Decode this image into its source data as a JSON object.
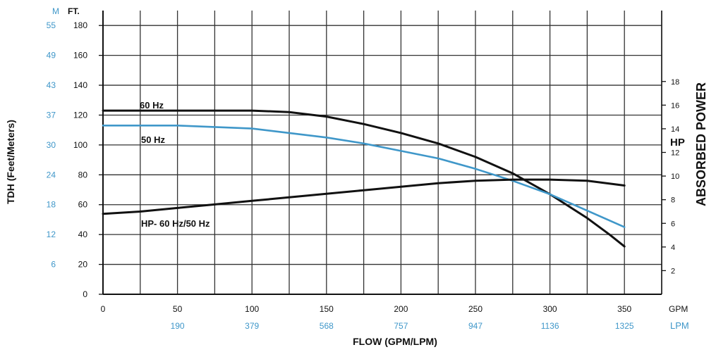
{
  "chart_data": {
    "type": "line",
    "title": "",
    "xlabel": "FLOW (GPM/LPM)",
    "ylabel": "TDH (Feet/Meters)",
    "y2label": "ABSORBED POWER",
    "units": {
      "left_meters": "M",
      "left_feet": "FT.",
      "right": "HP",
      "gpm": "GPM",
      "lpm": "LPM"
    },
    "xlim": [
      0,
      375
    ],
    "ylim": [
      0,
      190
    ],
    "y2lim": [
      0,
      24
    ],
    "grid": true,
    "x_ticks_gpm": [
      "0",
      "50",
      "100",
      "150",
      "200",
      "250",
      "300",
      "350"
    ],
    "x_ticks_gpm_values": [
      0,
      50,
      100,
      150,
      200,
      250,
      300,
      350
    ],
    "x_ticks_lpm": [
      "190",
      "379",
      "568",
      "757",
      "947",
      "1136",
      "1325"
    ],
    "x_ticks_lpm_values": [
      50,
      100,
      150,
      200,
      250,
      300,
      350
    ],
    "y_ticks_feet": [
      "0",
      "20",
      "40",
      "60",
      "80",
      "100",
      "120",
      "140",
      "160",
      "180"
    ],
    "y_ticks_feet_values": [
      0,
      20,
      40,
      60,
      80,
      100,
      120,
      140,
      160,
      180
    ],
    "y_ticks_meters": [
      "6",
      "12",
      "18",
      "24",
      "30",
      "37",
      "43",
      "49",
      "55"
    ],
    "y_ticks_meters_values": [
      20,
      40,
      60,
      80,
      100,
      120,
      140,
      160,
      180
    ],
    "y2_ticks": [
      "2",
      "4",
      "6",
      "8",
      "10",
      "12",
      "14",
      "16",
      "18"
    ],
    "y2_ticks_values": [
      2,
      4,
      6,
      8,
      10,
      12,
      14,
      16,
      18
    ],
    "series": [
      {
        "name": "60 Hz",
        "color": "#111111",
        "axis": "left",
        "x": [
          0,
          25,
          50,
          75,
          100,
          125,
          150,
          175,
          200,
          225,
          250,
          275,
          300,
          325,
          340,
          350
        ],
        "y": [
          123,
          123,
          123,
          123,
          123,
          122,
          119,
          114,
          108,
          101,
          92,
          81,
          67,
          51,
          40,
          32
        ]
      },
      {
        "name": "50 Hz",
        "color": "#3f97c9",
        "axis": "left",
        "x": [
          0,
          25,
          50,
          75,
          100,
          125,
          150,
          175,
          200,
          225,
          250,
          275,
          300,
          325,
          350
        ],
        "y": [
          113,
          113,
          113,
          112,
          111,
          108,
          105,
          101,
          96,
          91,
          84,
          76,
          67,
          56,
          45
        ]
      },
      {
        "name": "HP- 60 Hz/50 Hz",
        "color": "#111111",
        "axis": "right",
        "x": [
          0,
          25,
          50,
          75,
          100,
          125,
          150,
          175,
          200,
          225,
          250,
          275,
          300,
          325,
          350
        ],
        "y": [
          6.8,
          7.0,
          7.3,
          7.6,
          7.9,
          8.2,
          8.5,
          8.8,
          9.1,
          9.4,
          9.6,
          9.7,
          9.7,
          9.6,
          9.2
        ]
      }
    ]
  }
}
